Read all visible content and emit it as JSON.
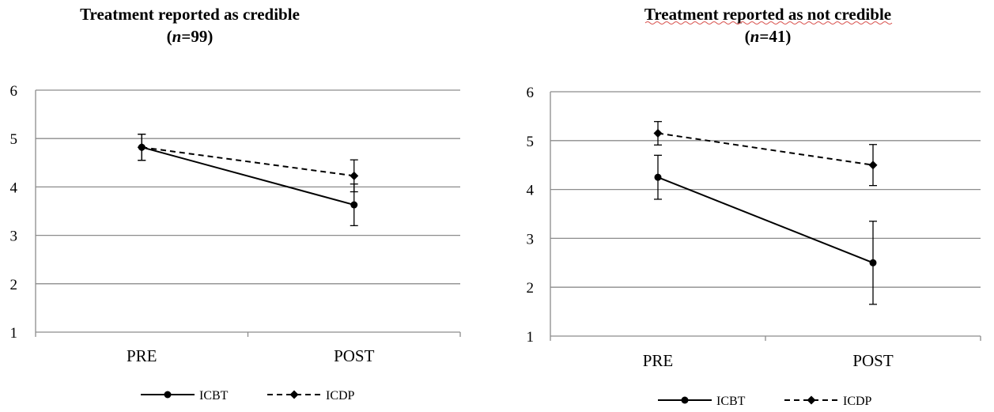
{
  "chart_data": [
    {
      "type": "line",
      "title_line1": "Treatment reported as credible",
      "title_line2": "(n=99)",
      "title_n_italic": "n",
      "title_n_rest": "=99)",
      "categories": [
        "PRE",
        "POST"
      ],
      "ylim": [
        1,
        6
      ],
      "yticks": [
        "1",
        "2",
        "3",
        "4",
        "5",
        "6"
      ],
      "grid": true,
      "legend_position": "bottom",
      "series": [
        {
          "name": "ICBT",
          "values": [
            4.82,
            3.63
          ],
          "error": [
            0.27,
            0.43
          ],
          "style": "solid",
          "marker": "circle"
        },
        {
          "name": "ICDP",
          "values": [
            4.82,
            4.23
          ],
          "error": [
            0.27,
            0.33
          ],
          "style": "dashed",
          "marker": "diamond"
        }
      ]
    },
    {
      "type": "line",
      "title_line1": "Treatment reported as not credible",
      "title_line2": "(n=41)",
      "title_n_italic": "n",
      "title_n_rest": "=41)",
      "categories": [
        "PRE",
        "POST"
      ],
      "ylim": [
        1,
        6
      ],
      "yticks": [
        "1",
        "2",
        "3",
        "4",
        "5",
        "6"
      ],
      "grid": true,
      "legend_position": "bottom",
      "series": [
        {
          "name": "ICBT",
          "values": [
            4.25,
            2.5
          ],
          "error": [
            0.45,
            0.85
          ],
          "style": "solid",
          "marker": "circle"
        },
        {
          "name": "ICDP",
          "values": [
            5.15,
            4.5
          ],
          "error": [
            0.24,
            0.42
          ],
          "style": "dashed",
          "marker": "diamond"
        }
      ]
    }
  ],
  "colors": {
    "line": "#000000",
    "grid": "#8c8c8c",
    "axis": "#8c8c8c",
    "title_underline": "#d9534f"
  }
}
